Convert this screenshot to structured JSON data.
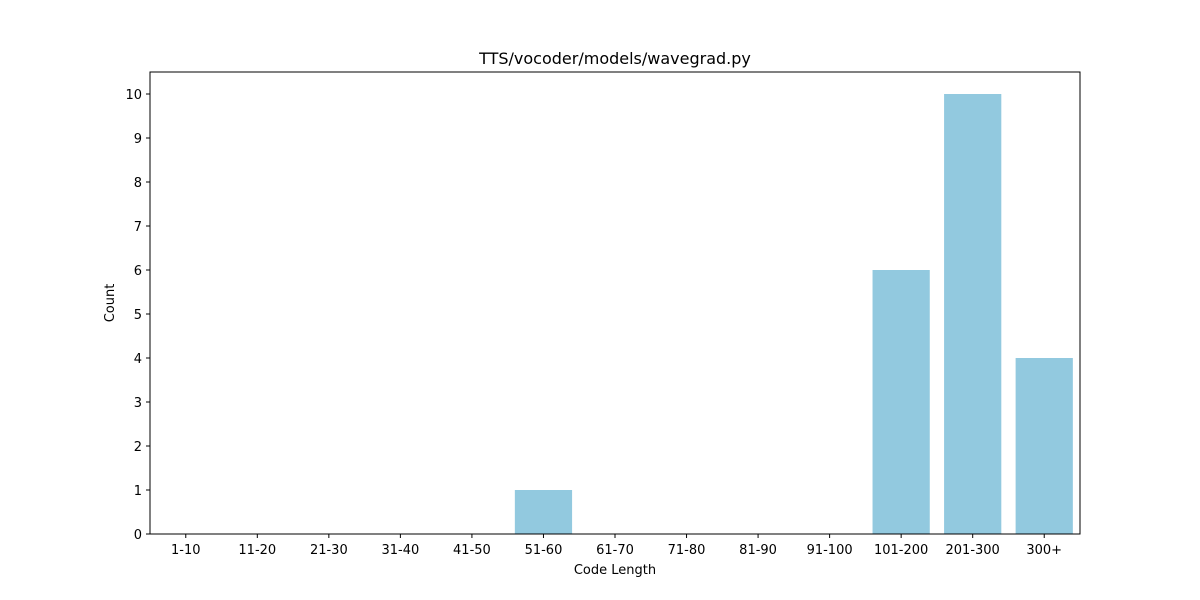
{
  "chart_data": {
    "type": "bar",
    "title": "TTS/vocoder/models/wavegrad.py",
    "xlabel": "Code Length",
    "ylabel": "Count",
    "categories": [
      "1-10",
      "11-20",
      "21-30",
      "31-40",
      "41-50",
      "51-60",
      "61-70",
      "71-80",
      "81-90",
      "91-100",
      "101-200",
      "201-300",
      "300+"
    ],
    "values": [
      0,
      0,
      0,
      0,
      0,
      1,
      0,
      0,
      0,
      0,
      6,
      10,
      4
    ],
    "ylim": [
      0,
      10.5
    ],
    "yticks": [
      0,
      1,
      2,
      3,
      4,
      5,
      6,
      7,
      8,
      9,
      10
    ],
    "grid": false,
    "bar_color": "#92c9df"
  }
}
